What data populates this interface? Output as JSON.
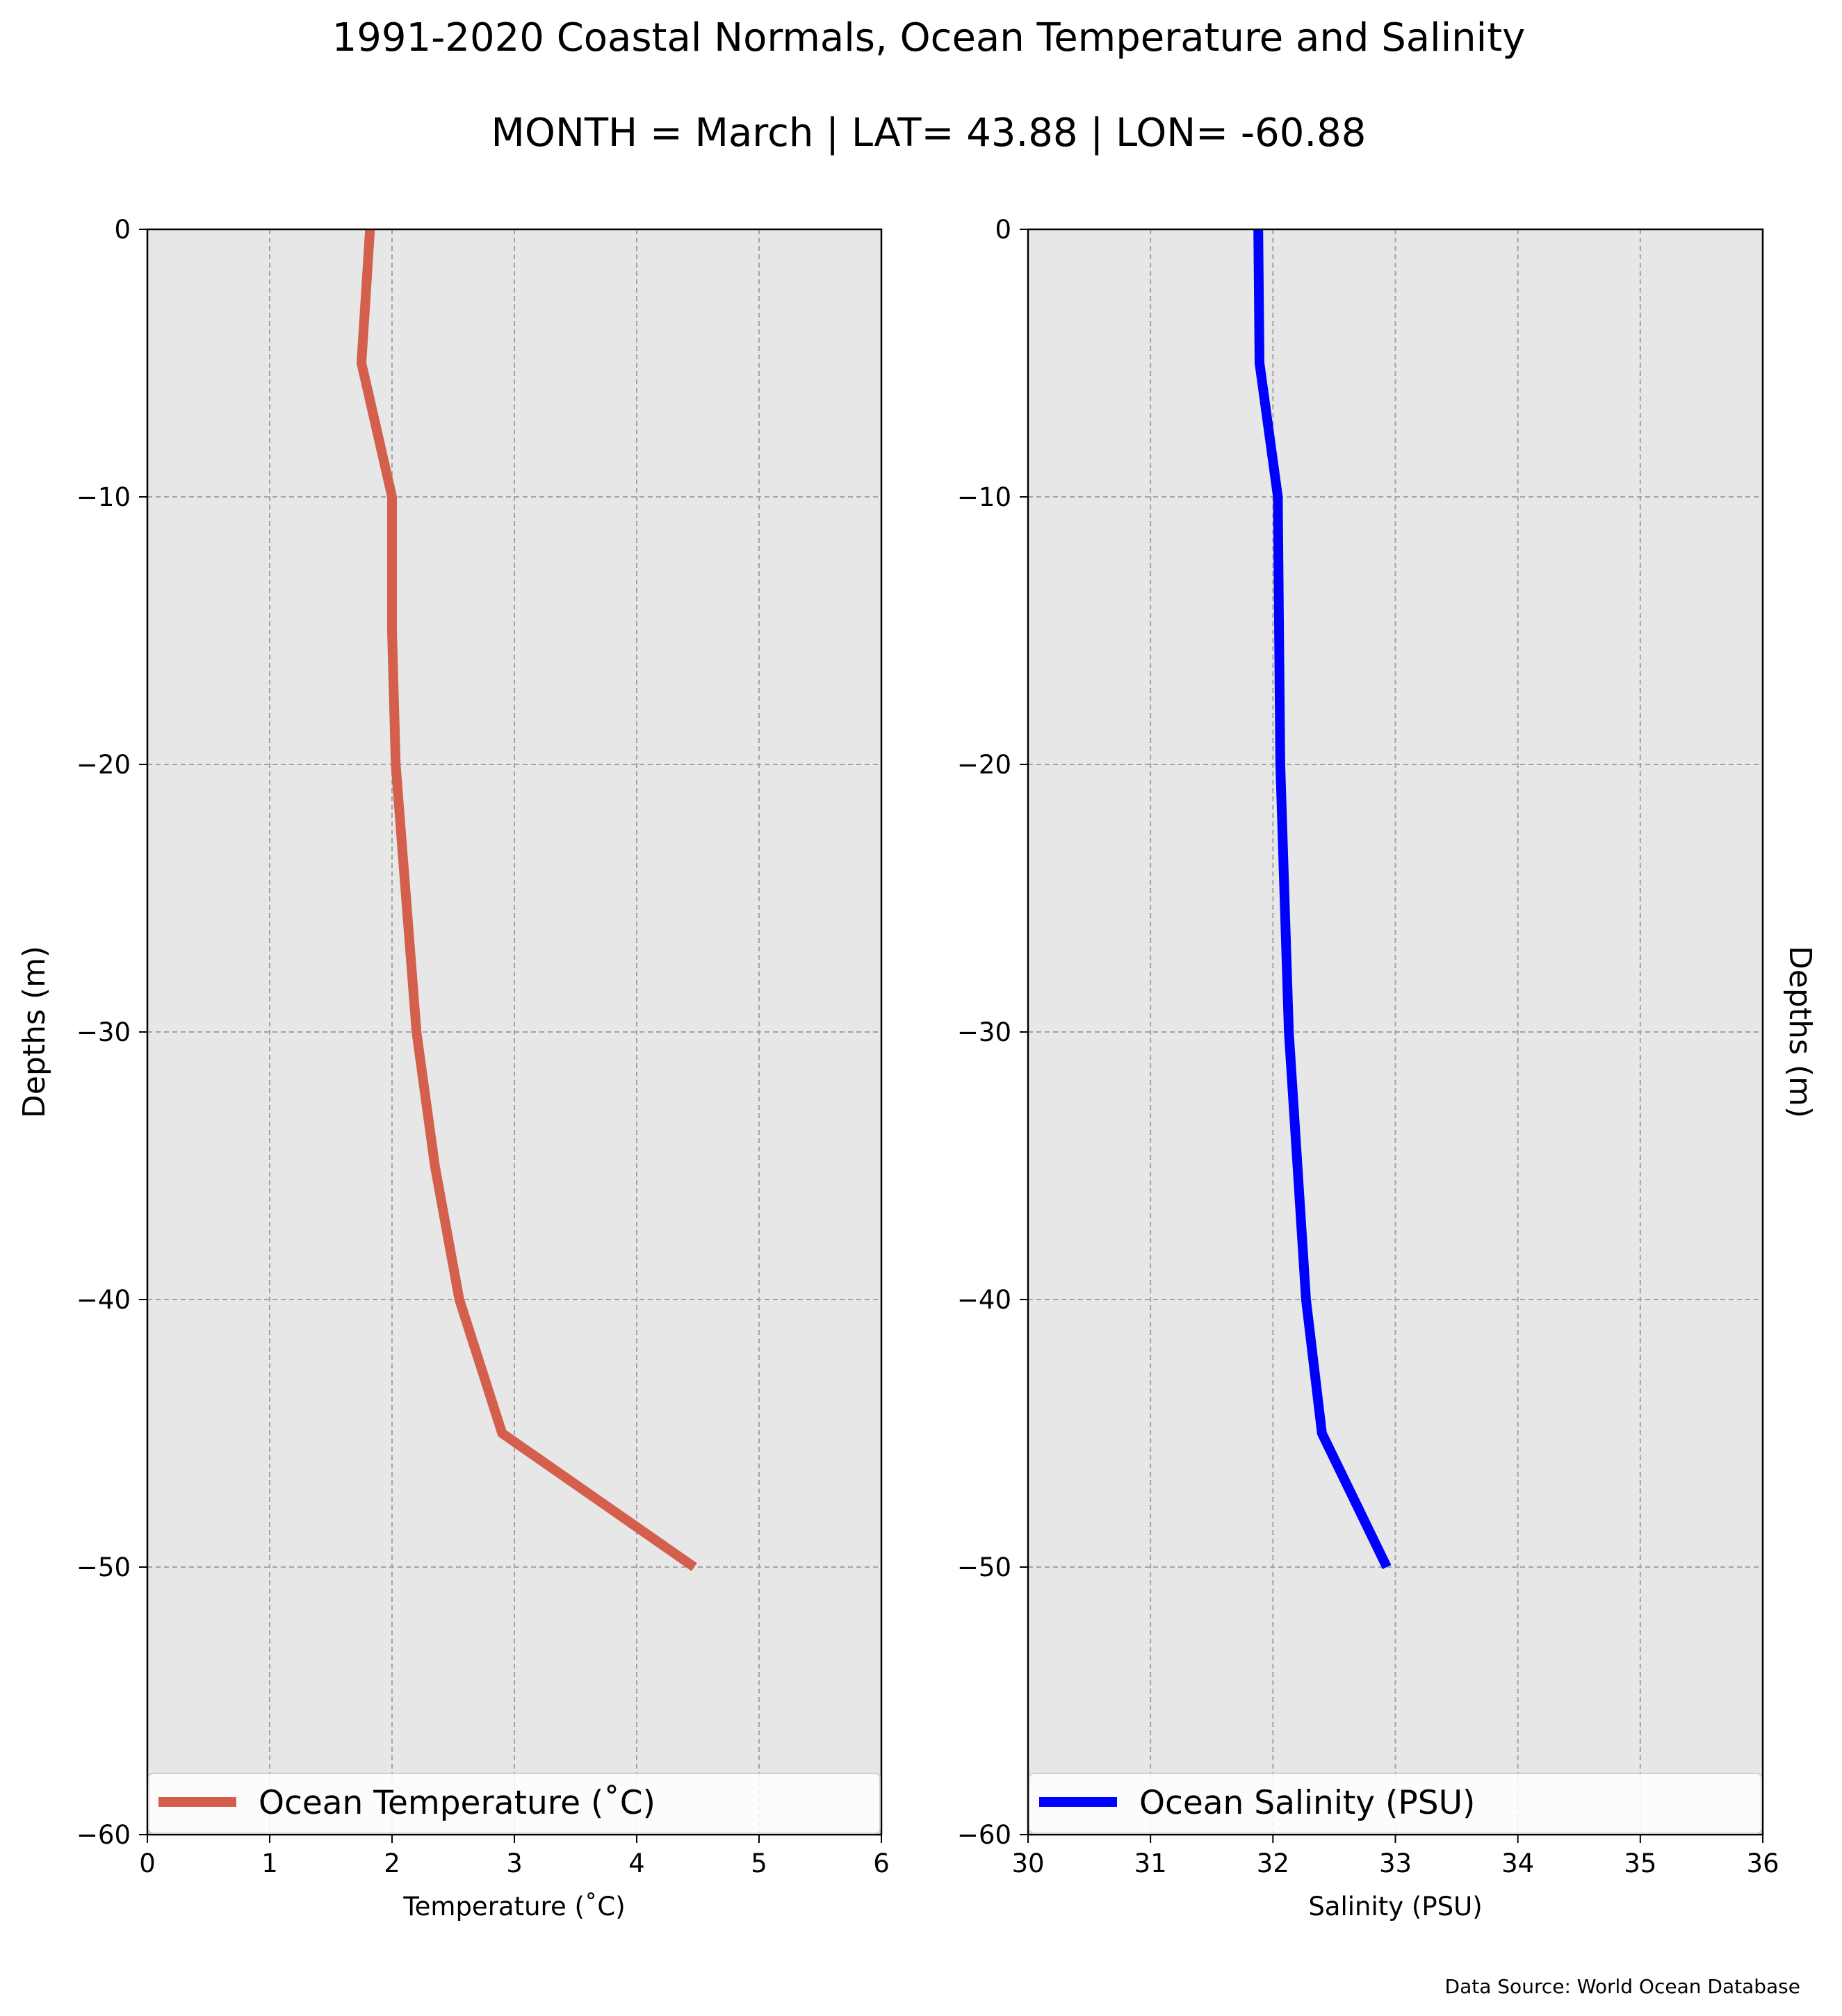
{
  "figure": {
    "title": "1991-2020 Coastal Normals, Ocean Temperature and Salinity",
    "subtitle": "MONTH = March | LAT= 43.88 | LON= -60.88",
    "source": "Data Source: World Ocean Database"
  },
  "chart_data": [
    {
      "type": "line",
      "xlabel": "Temperature ($^\\circ$C)",
      "xlabel_display": "Temperature (˚C)",
      "ylabel": "Depths (m)",
      "xlim": [
        0,
        6
      ],
      "ylim": [
        -60,
        0
      ],
      "xticks": [
        "0",
        "1",
        "2",
        "3",
        "4",
        "5",
        "6"
      ],
      "yticks": [
        "0",
        "−10",
        "−20",
        "−30",
        "−40",
        "−50",
        "−60"
      ],
      "grid": true,
      "legend_position": "bottom",
      "series": [
        {
          "name": "Ocean Temperature (˚C)",
          "color": "#d35f4c",
          "x": [
            1.82,
            1.75,
            2.0,
            2.0,
            2.03,
            2.2,
            2.35,
            2.55,
            2.9,
            4.47
          ],
          "y": [
            0,
            -5,
            -10,
            -15,
            -20,
            -30,
            -35,
            -40,
            -45,
            -50
          ]
        }
      ]
    },
    {
      "type": "line",
      "xlabel": "Salinity (PSU)",
      "ylabel": "Depths (m)",
      "xlim": [
        30,
        36
      ],
      "ylim": [
        -60,
        0
      ],
      "xticks": [
        "30",
        "31",
        "32",
        "33",
        "34",
        "35",
        "36"
      ],
      "yticks": [
        "0",
        "−10",
        "−20",
        "−30",
        "−40",
        "−50",
        "−60"
      ],
      "grid": true,
      "legend_position": "bottom",
      "series": [
        {
          "name": "Ocean Salinity (PSU)",
          "color": "#0000ff",
          "x": [
            31.88,
            31.89,
            32.04,
            32.05,
            32.06,
            32.13,
            32.2,
            32.27,
            32.4,
            32.93
          ],
          "y": [
            0,
            -5,
            -10,
            -15,
            -20,
            -30,
            -35,
            -40,
            -45,
            -50
          ]
        }
      ]
    }
  ]
}
